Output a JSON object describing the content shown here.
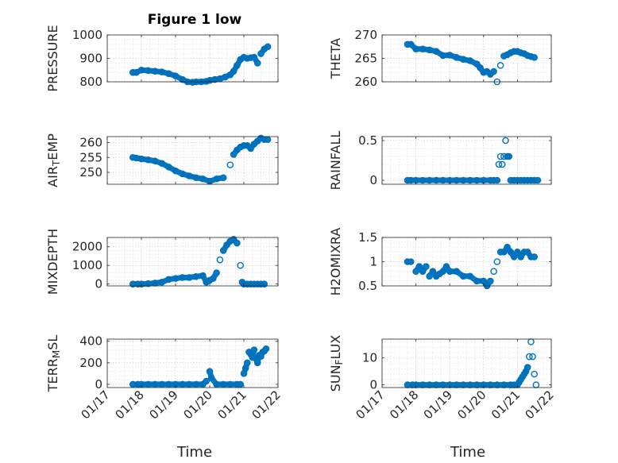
{
  "title": "Figure 1 low",
  "xlabel": "Time",
  "x_tick_labels": [
    "01/17",
    "01/18",
    "01/19",
    "01/20",
    "01/21",
    "01/22"
  ],
  "marker_color": "#0072BD",
  "chart_data": [
    {
      "type": "scatter",
      "name": "PRESSURE",
      "ylabel": "PRESSURE",
      "ylabel_parts": [
        [
          "PRESSURE",
          ""
        ]
      ],
      "xlim": [
        17,
        22
      ],
      "ylim": [
        800,
        1000
      ],
      "yticks": [
        800,
        900,
        1000
      ],
      "ytick_labels": [
        "800",
        "900",
        "1000"
      ],
      "grid": true,
      "title": "Figure 1 low",
      "x": [
        17.75,
        17.85,
        18.0,
        18.2,
        18.4,
        18.6,
        18.8,
        19.0,
        19.2,
        19.35,
        19.5,
        19.6,
        19.75,
        19.9,
        20.0,
        20.15,
        20.3,
        20.45,
        20.6,
        20.7,
        20.8,
        20.9,
        21.0,
        21.1,
        21.2,
        21.3,
        21.4,
        21.5,
        21.6,
        21.7
      ],
      "y": [
        840,
        840,
        850,
        848,
        845,
        842,
        835,
        825,
        810,
        800,
        798,
        800,
        800,
        802,
        806,
        810,
        813,
        820,
        830,
        845,
        870,
        895,
        905,
        900,
        903,
        905,
        880,
        920,
        940,
        950
      ]
    },
    {
      "type": "scatter",
      "name": "THETA",
      "ylabel": "THETA",
      "ylabel_parts": [
        [
          "THETA",
          ""
        ]
      ],
      "xlim": [
        17,
        22
      ],
      "ylim": [
        260,
        270
      ],
      "yticks": [
        260,
        265,
        270
      ],
      "ytick_labels": [
        "260",
        "265",
        "270"
      ],
      "grid": true,
      "x": [
        17.75,
        17.85,
        18.0,
        18.2,
        18.4,
        18.6,
        18.8,
        19.0,
        19.2,
        19.4,
        19.6,
        19.8,
        19.9,
        20.0,
        20.1,
        20.2,
        20.3,
        20.4,
        20.5,
        20.6,
        20.7,
        20.8,
        20.9,
        21.0,
        21.1,
        21.2,
        21.3,
        21.4,
        21.5
      ],
      "y": [
        268,
        268,
        267,
        267,
        266.8,
        266.5,
        265.6,
        265.7,
        265.2,
        264.8,
        264.5,
        263.8,
        263.0,
        262.0,
        262.2,
        261.6,
        262.2,
        260.0,
        263.5,
        265.5,
        265.8,
        266.2,
        266.5,
        266.5,
        266.2,
        266.0,
        265.6,
        265.4,
        265.2
      ]
    },
    {
      "type": "scatter",
      "name": "AIR_TEMP",
      "ylabel": "AIR_TEMP",
      "ylabel_parts": [
        [
          "AIR",
          ""
        ],
        [
          "T",
          "sub"
        ],
        [
          "EMP",
          ""
        ]
      ],
      "xlim": [
        17,
        22
      ],
      "ylim": [
        246,
        262
      ],
      "yticks": [
        250,
        255,
        260
      ],
      "ytick_labels": [
        "250",
        "255",
        "260"
      ],
      "grid": true,
      "x": [
        17.75,
        17.85,
        18.0,
        18.2,
        18.4,
        18.6,
        18.8,
        19.0,
        19.2,
        19.4,
        19.6,
        19.8,
        20.0,
        20.2,
        20.4,
        20.6,
        20.7,
        20.8,
        20.9,
        21.0,
        21.1,
        21.2,
        21.3,
        21.4,
        21.5,
        21.6,
        21.7
      ],
      "y": [
        255,
        254.8,
        254.5,
        254.2,
        253.8,
        253.0,
        251.8,
        250.5,
        249.5,
        248.8,
        248.2,
        247.8,
        247.0,
        247.8,
        248.2,
        252.5,
        256.0,
        257.5,
        258.5,
        259.0,
        259.0,
        258.0,
        259.5,
        260.5,
        261.5,
        261.0,
        261.0
      ]
    },
    {
      "type": "scatter",
      "name": "RAINFALL",
      "ylabel": "RAINFALL",
      "ylabel_parts": [
        [
          "RAINFALL",
          ""
        ]
      ],
      "xlim": [
        17,
        22
      ],
      "ylim": [
        -0.05,
        0.55
      ],
      "yticks": [
        0,
        0.5
      ],
      "ytick_labels": [
        "0",
        "0.5"
      ],
      "grid": true,
      "x": [
        17.75,
        17.85,
        18.0,
        18.2,
        18.4,
        18.6,
        18.8,
        19.0,
        19.2,
        19.4,
        19.6,
        19.8,
        20.0,
        20.2,
        20.3,
        20.4,
        20.45,
        20.5,
        20.55,
        20.6,
        20.65,
        20.7,
        20.75,
        20.8,
        20.9,
        21.0,
        21.1,
        21.2,
        21.3,
        21.4,
        21.5,
        21.6
      ],
      "y": [
        0,
        0,
        0,
        0,
        0,
        0,
        0,
        0,
        0,
        0,
        0,
        0,
        0,
        0,
        0,
        0,
        0.2,
        0.3,
        0.2,
        0.3,
        0.5,
        0.3,
        0.3,
        0,
        0,
        0,
        0,
        0,
        0,
        0,
        0,
        0
      ]
    },
    {
      "type": "scatter",
      "name": "MIXDEPTH",
      "ylabel": "MIXDEPTH",
      "ylabel_parts": [
        [
          "MIXDEPTH",
          ""
        ]
      ],
      "xlim": [
        17,
        22
      ],
      "ylim": [
        -100,
        2500
      ],
      "yticks": [
        0,
        1000,
        2000
      ],
      "ytick_labels": [
        "0",
        "1000",
        "2000"
      ],
      "grid": true,
      "x": [
        17.75,
        17.9,
        18.0,
        18.2,
        18.4,
        18.6,
        18.8,
        19.0,
        19.2,
        19.4,
        19.6,
        19.8,
        19.9,
        20.0,
        20.1,
        20.2,
        20.3,
        20.4,
        20.5,
        20.6,
        20.7,
        20.8,
        20.9,
        20.95,
        21.0,
        21.1,
        21.2,
        21.3,
        21.4,
        21.5,
        21.6
      ],
      "y": [
        0,
        0,
        0,
        20,
        50,
        100,
        250,
        300,
        350,
        350,
        400,
        450,
        100,
        200,
        300,
        600,
        1300,
        1800,
        2100,
        2300,
        2400,
        2200,
        1000,
        100,
        0,
        0,
        0,
        0,
        0,
        0,
        0
      ]
    },
    {
      "type": "scatter",
      "name": "H2OMIXRA",
      "ylabel": "H2OMIXRA",
      "ylabel_parts": [
        [
          "H2OMIXRA",
          ""
        ]
      ],
      "xlim": [
        17,
        22
      ],
      "ylim": [
        0.5,
        1.5
      ],
      "yticks": [
        0.5,
        1,
        1.5
      ],
      "ytick_labels": [
        "0.5",
        "1",
        "1.5"
      ],
      "grid": true,
      "x": [
        17.75,
        17.85,
        18.0,
        18.1,
        18.2,
        18.3,
        18.4,
        18.5,
        18.6,
        18.7,
        18.8,
        18.9,
        19.0,
        19.2,
        19.4,
        19.6,
        19.8,
        20.0,
        20.1,
        20.2,
        20.3,
        20.4,
        20.5,
        20.6,
        20.7,
        20.8,
        20.9,
        21.0,
        21.1,
        21.2,
        21.3,
        21.4,
        21.5
      ],
      "y": [
        1.0,
        1.0,
        0.8,
        0.9,
        0.8,
        0.9,
        0.7,
        0.8,
        0.7,
        0.75,
        0.8,
        0.9,
        0.8,
        0.8,
        0.7,
        0.7,
        0.6,
        0.6,
        0.5,
        0.6,
        0.8,
        1.0,
        1.2,
        1.2,
        1.3,
        1.2,
        1.1,
        1.2,
        1.1,
        1.2,
        1.2,
        1.1,
        1.1
      ]
    },
    {
      "type": "scatter",
      "name": "TERR_MSL",
      "ylabel": "TERR_MSL",
      "ylabel_parts": [
        [
          "TERR",
          ""
        ],
        [
          "M",
          "sub"
        ],
        [
          "SL",
          ""
        ]
      ],
      "xlim": [
        17,
        22
      ],
      "ylim": [
        -30,
        420
      ],
      "yticks": [
        0,
        200,
        400
      ],
      "ytick_labels": [
        "0",
        "200",
        "400"
      ],
      "grid": true,
      "x": [
        17.75,
        17.9,
        18.0,
        18.2,
        18.4,
        18.6,
        18.8,
        19.0,
        19.2,
        19.4,
        19.6,
        19.8,
        19.9,
        20.0,
        20.05,
        20.2,
        20.4,
        20.6,
        20.8,
        20.9,
        21.0,
        21.05,
        21.1,
        21.15,
        21.2,
        21.25,
        21.3,
        21.35,
        21.4,
        21.45,
        21.5,
        21.55,
        21.6,
        21.65
      ],
      "y": [
        0,
        0,
        0,
        0,
        0,
        0,
        0,
        0,
        0,
        0,
        0,
        0,
        30,
        120,
        60,
        0,
        0,
        0,
        0,
        0,
        100,
        150,
        200,
        300,
        280,
        250,
        320,
        240,
        200,
        270,
        260,
        300,
        310,
        330
      ]
    },
    {
      "type": "scatter",
      "name": "SUN_FLUX",
      "ylabel": "SUN_FLUX",
      "ylabel_parts": [
        [
          "SUN",
          ""
        ],
        [
          "F",
          "sub"
        ],
        [
          "LUX",
          ""
        ]
      ],
      "xlim": [
        17,
        22
      ],
      "ylim": [
        -1,
        17
      ],
      "yticks": [
        0,
        10
      ],
      "ytick_labels": [
        "0",
        "10"
      ],
      "grid": true,
      "x": [
        17.75,
        17.9,
        18.0,
        18.2,
        18.4,
        18.6,
        18.8,
        19.0,
        19.2,
        19.4,
        19.6,
        19.8,
        20.0,
        20.2,
        20.4,
        20.6,
        20.8,
        20.9,
        21.0,
        21.05,
        21.1,
        21.15,
        21.2,
        21.25,
        21.3,
        21.35,
        21.4,
        21.45,
        21.5,
        21.55
      ],
      "y": [
        0,
        0,
        0,
        0,
        0,
        0,
        0,
        0,
        0,
        0,
        0,
        0,
        0,
        0,
        0,
        0,
        0,
        0,
        0,
        1,
        2,
        3,
        4,
        5,
        6.5,
        10.5,
        16,
        10.5,
        4,
        0
      ]
    }
  ]
}
